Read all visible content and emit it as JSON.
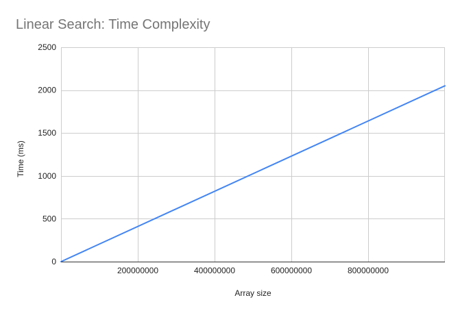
{
  "chart_data": {
    "type": "line",
    "title": "Linear Search: Time Complexity",
    "xlabel": "Array size",
    "ylabel": "Time (ms)",
    "xlim": [
      0,
      1000000000
    ],
    "ylim": [
      0,
      2500
    ],
    "x_ticks": [
      200000000,
      400000000,
      600000000,
      800000000
    ],
    "y_ticks": [
      0,
      500,
      1000,
      1500,
      2000,
      2500
    ],
    "grid": true,
    "legend": "none",
    "series": [
      {
        "color": "#4285f4",
        "x": [
          0,
          1000000000
        ],
        "y": [
          0,
          2050
        ]
      }
    ]
  }
}
